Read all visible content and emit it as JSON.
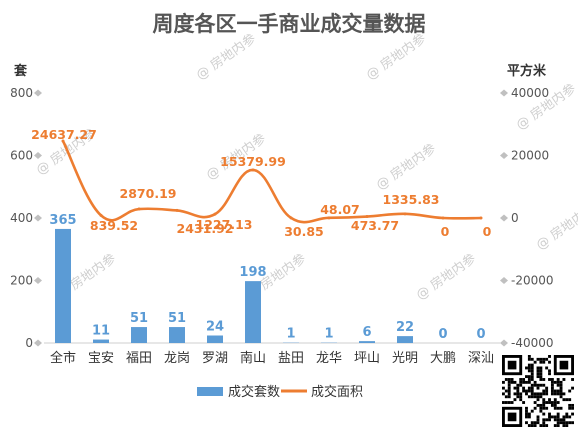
{
  "chart_data": {
    "type": "bar",
    "title": "周度各区一手商业成交量数据",
    "categories": [
      "全市",
      "宝安",
      "福田",
      "龙岗",
      "罗湖",
      "南山",
      "盐田",
      "龙华",
      "坪山",
      "光明",
      "大鹏",
      "深汕"
    ],
    "y_left": {
      "label": "套",
      "ylim": [
        0,
        800
      ],
      "ticks": [
        "0",
        "200",
        "400",
        "600",
        "800"
      ]
    },
    "y_right": {
      "label": "平方米",
      "ylim": [
        -40000,
        40000
      ],
      "ticks": [
        "-40000",
        "-20000",
        "0",
        "20000",
        "40000"
      ]
    },
    "series": [
      {
        "name": "成交套数",
        "type": "bar",
        "axis": "left",
        "color": "#5b9bd5",
        "values": [
          365,
          11,
          51,
          51,
          24,
          198,
          1,
          1,
          6,
          22,
          0,
          0
        ],
        "labels": [
          "365",
          "11",
          "51",
          "51",
          "24",
          "198",
          "1",
          "1",
          "6",
          "22",
          "0",
          "0"
        ]
      },
      {
        "name": "成交面积",
        "type": "line",
        "axis": "right",
        "color": "#ed7d31",
        "smooth": true,
        "values": [
          24637.27,
          839.52,
          2870.19,
          2431.92,
          1227.13,
          15379.99,
          30.85,
          48.07,
          473.77,
          1335.83,
          0,
          0
        ],
        "labels": [
          "24637.27",
          "839.52",
          "2870.19",
          "2431.92",
          "1227.13",
          "15379.99",
          "30.85",
          "48.07",
          "473.77",
          "1335.83",
          "0",
          "0"
        ]
      }
    ],
    "grid": false,
    "legend": "bottom"
  },
  "watermark": "房地内参"
}
